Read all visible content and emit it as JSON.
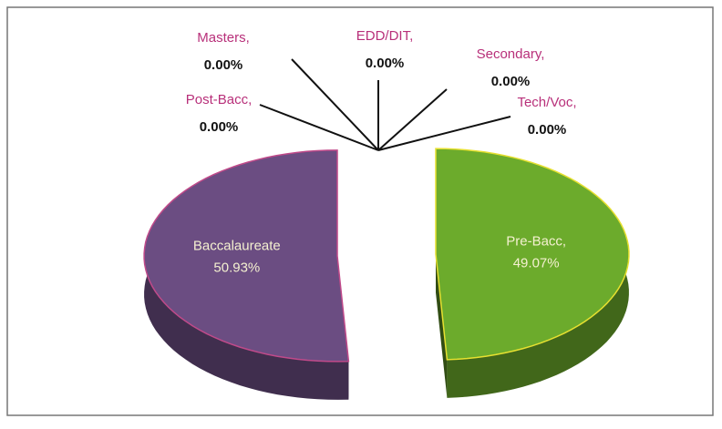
{
  "chart_data": {
    "type": "pie",
    "categories": [
      "Pre-Bacc,",
      "Baccalaureate",
      "Post-Bacc,",
      "Masters,",
      "EDD/DIT,",
      "Secondary,",
      "Tech/Voc,"
    ],
    "values": [
      49.07,
      50.93,
      0,
      0,
      0,
      0,
      0
    ],
    "value_labels": [
      "49.07%",
      "50.93%",
      "0.00%",
      "0.00%",
      "0.00%",
      "0.00%",
      "0.00%"
    ],
    "colors": [
      "#6cab2c",
      "#6b4d82",
      "#999999",
      "#999999",
      "#999999",
      "#999999",
      "#999999"
    ]
  }
}
